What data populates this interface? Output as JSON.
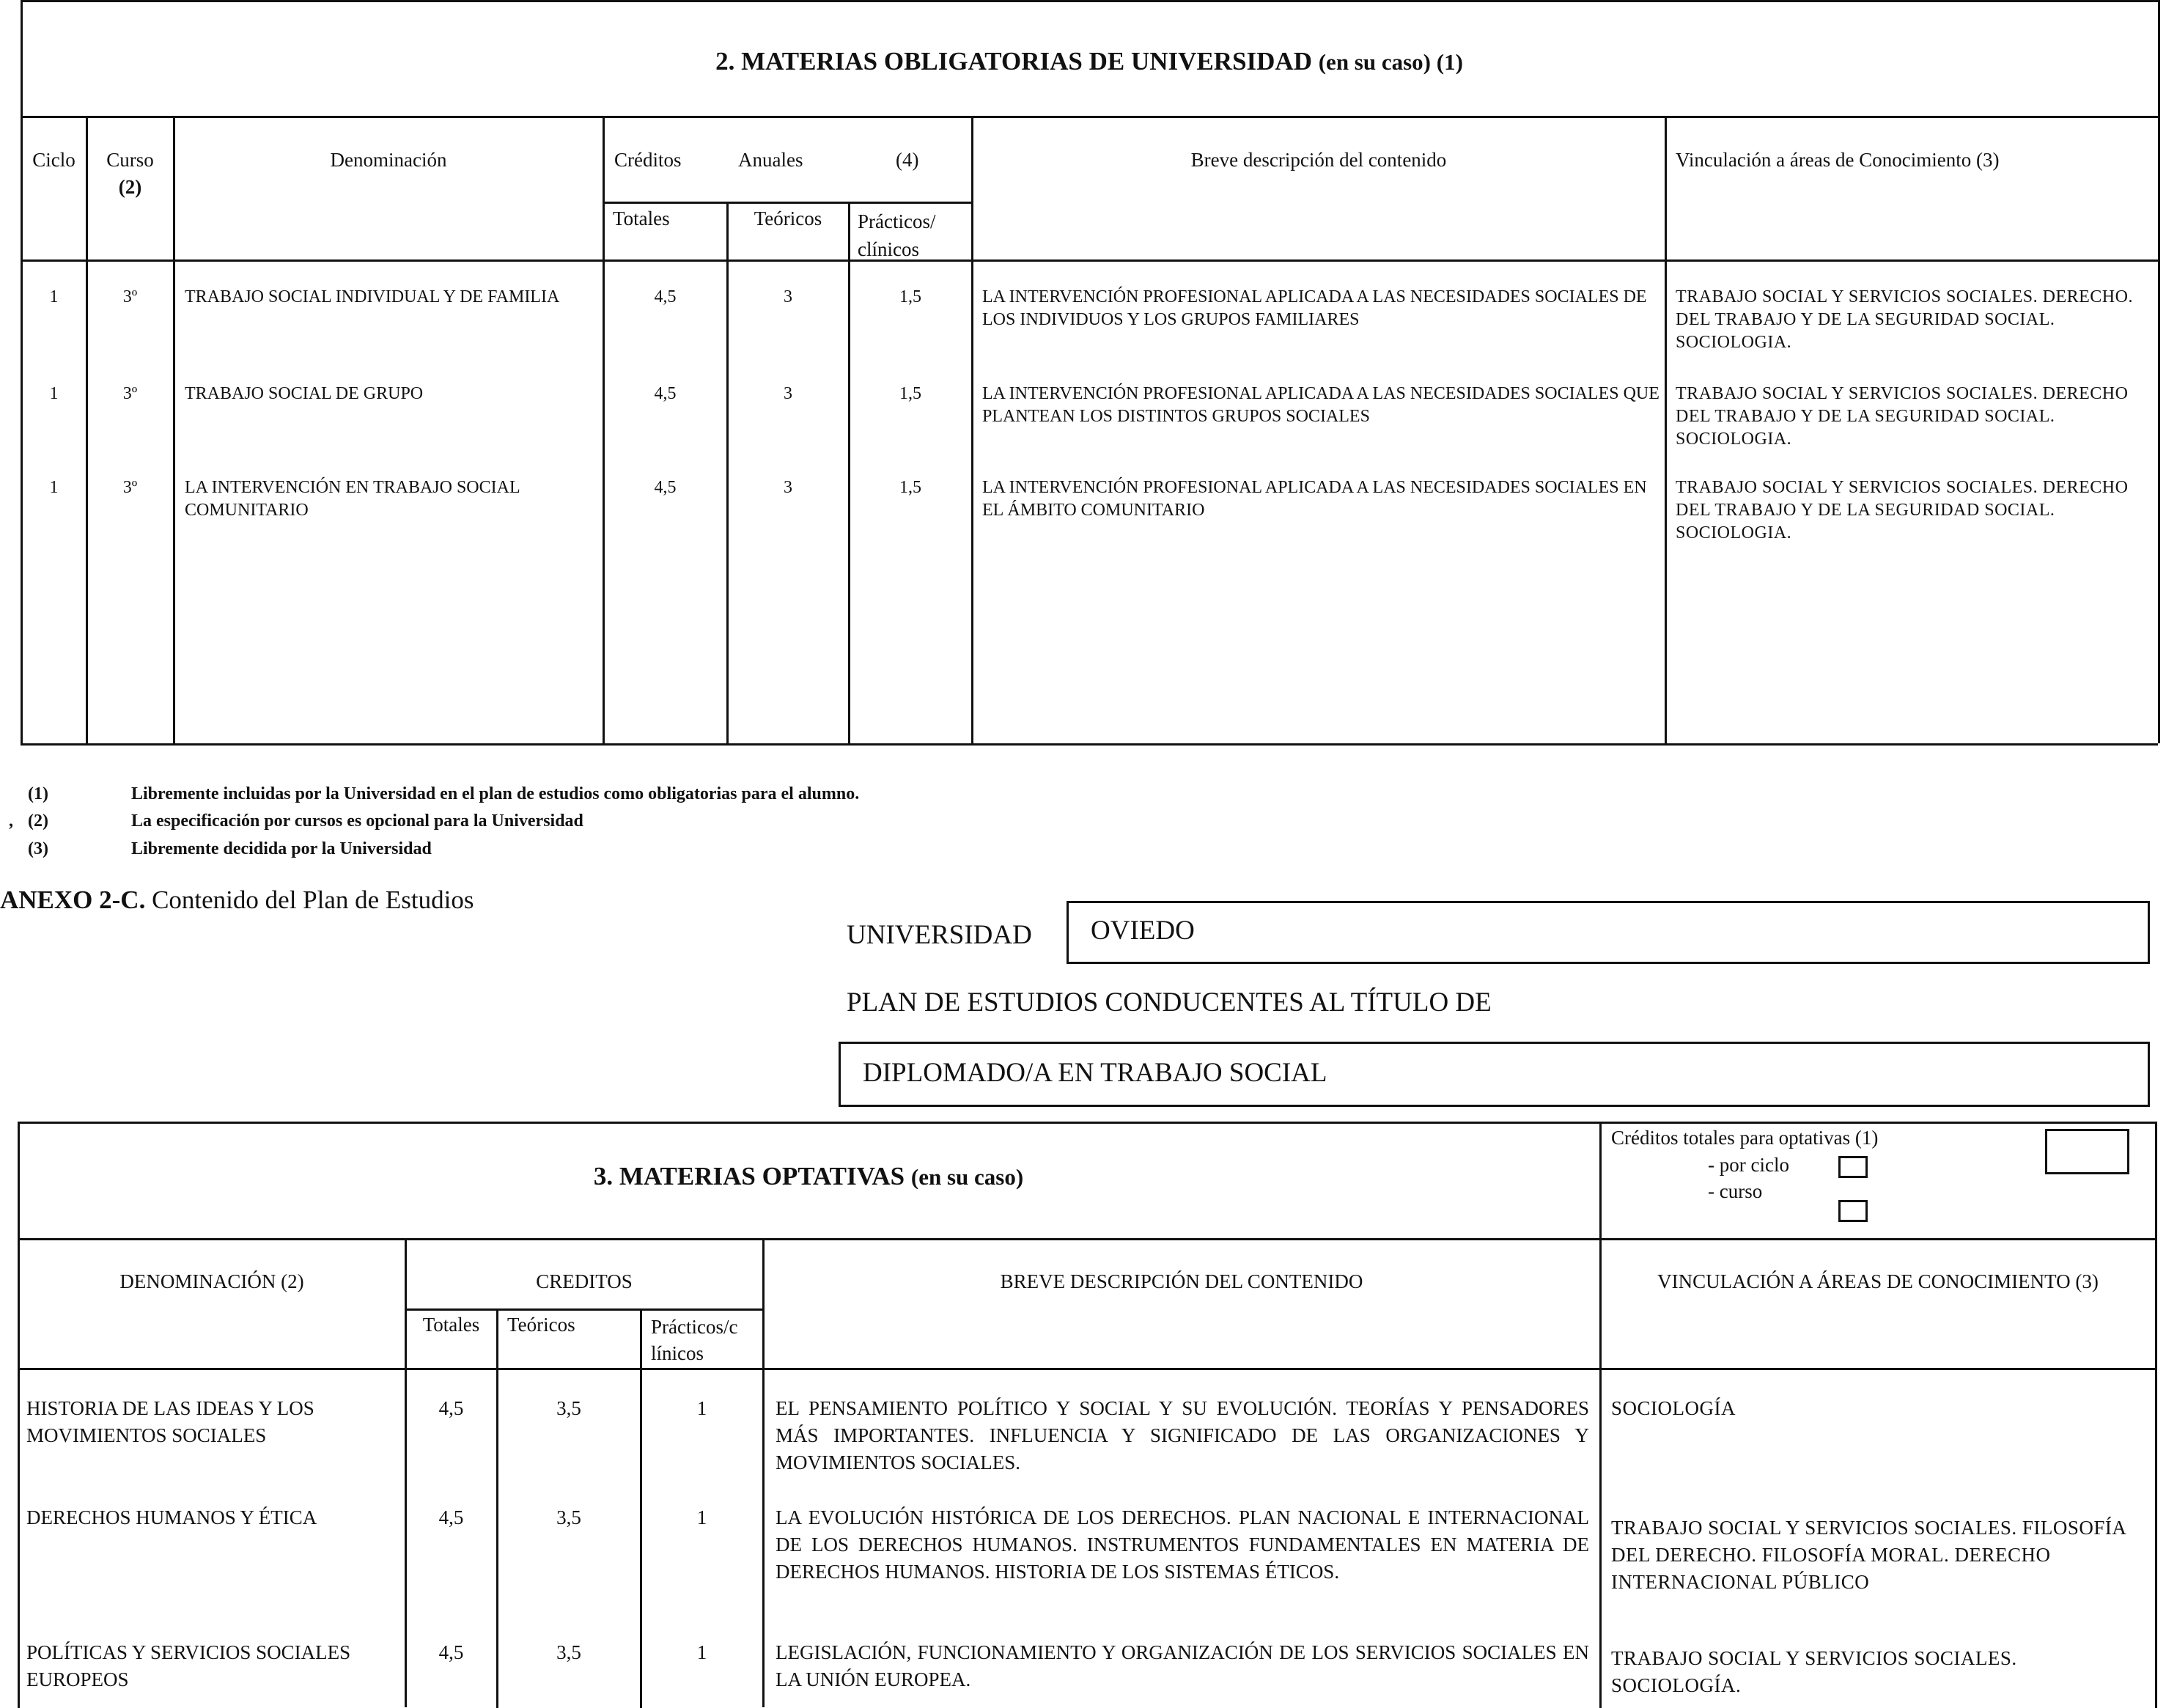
{
  "table1": {
    "title": "2. MATERIAS OBLIGATORIAS DE UNIVERSIDAD",
    "title_suffix": "(en su caso)  (1)",
    "headers": {
      "ciclo": "Ciclo",
      "curso": "Curso",
      "curso_note": "(2)",
      "denominacion": "Denominación",
      "creditos": "Créditos",
      "anuales": "Anuales",
      "anuales_note": "(4)",
      "totales": "Totales",
      "teoricos": "Teóricos",
      "practicos": "Prácticos/ clínicos",
      "descripcion": "Breve descripción del contenido",
      "vinculacion": "Vinculación a áreas de Conocimiento (3)"
    },
    "rows": [
      {
        "ciclo": "1",
        "curso": "3º",
        "denominacion": "TRABAJO SOCIAL INDIVIDUAL Y DE FAMILIA",
        "totales": "4,5",
        "teoricos": "3",
        "practicos": "1,5",
        "descripcion": "LA INTERVENCIÓN PROFESIONAL APLICADA A LAS NECESIDADES SOCIALES DE LOS INDIVIDUOS Y LOS GRUPOS FAMILIARES",
        "vinculacion": "TRABAJO SOCIAL Y SERVICIOS SOCIALES. DERECHO. DEL TRABAJO Y DE LA SEGURIDAD SOCIAL. SOCIOLOGIA."
      },
      {
        "ciclo": "1",
        "curso": "3º",
        "denominacion": "TRABAJO SOCIAL DE GRUPO",
        "totales": "4,5",
        "teoricos": "3",
        "practicos": "1,5",
        "descripcion": "LA INTERVENCIÓN PROFESIONAL APLICADA A LAS NECESIDADES SOCIALES QUE PLANTEAN LOS DISTINTOS GRUPOS SOCIALES",
        "vinculacion": "TRABAJO SOCIAL Y SERVICIOS SOCIALES. DERECHO  DEL TRABAJO Y DE LA SEGURIDAD SOCIAL. SOCIOLOGIA."
      },
      {
        "ciclo": "1",
        "curso": "3º",
        "denominacion": "LA INTERVENCIÓN EN TRABAJO SOCIAL COMUNITARIO",
        "totales": "4,5",
        "teoricos": "3",
        "practicos": "1,5",
        "descripcion": "LA INTERVENCIÓN PROFESIONAL APLICADA A LAS NECESIDADES SOCIALES EN EL ÁMBITO COMUNITARIO",
        "vinculacion": "TRABAJO SOCIAL Y SERVICIOS SOCIALES. DERECHO DEL TRABAJO Y DE LA SEGURIDAD SOCIAL. SOCIOLOGIA."
      }
    ]
  },
  "footnotes": [
    {
      "mark": "(1)",
      "text": "Libremente incluidas por la Universidad en el plan de estudios como obligatorias para el alumno."
    },
    {
      "mark": "(2)",
      "text": "La especificación por cursos es opcional para la Universidad"
    },
    {
      "mark": "(3)",
      "text": "Libremente decidida por la Universidad"
    }
  ],
  "annex": {
    "label": "ANEXO 2-C.",
    "text": "Contenido del Plan de Estudios"
  },
  "university": {
    "label": "UNIVERSIDAD",
    "value": "OVIEDO"
  },
  "plan": {
    "label": "PLAN DE ESTUDIOS CONDUCENTES AL TÍTULO DE",
    "value": "DIPLOMADO/A EN TRABAJO SOCIAL"
  },
  "table2": {
    "title": "3. MATERIAS OPTATIVAS",
    "title_suffix": "(en su caso)",
    "credits_box": {
      "label": "Créditos totales para optativas (1)",
      "por_ciclo": "- por ciclo",
      "curso": "- curso"
    },
    "headers": {
      "denominacion": "DENOMINACIÓN (2)",
      "creditos": "CREDITOS",
      "totales": "Totales",
      "teoricos": "Teóricos",
      "practicos": "Prácticos/c línicos",
      "descripcion": "BREVE DESCRIPCIÓN DEL CONTENIDO",
      "vinculacion": "VINCULACIÓN A ÁREAS DE CONOCIMIENTO (3)"
    },
    "rows": [
      {
        "denominacion": "HISTORIA DE LAS IDEAS  Y LOS MOVIMIENTOS SOCIALES",
        "totales": "4,5",
        "teoricos": "3,5",
        "practicos": "1",
        "descripcion": "EL PENSAMIENTO POLÍTICO Y SOCIAL Y SU EVOLUCIÓN. TEORÍAS Y PENSADORES MÁS IMPORTANTES. INFLUENCIA Y SIGNIFICADO DE LAS ORGANIZACIONES Y MOVIMIENTOS SOCIALES.",
        "vinculacion": "SOCIOLOGÍA"
      },
      {
        "denominacion": "DERECHOS HUMANOS Y ÉTICA",
        "totales": "4,5",
        "teoricos": "3,5",
        "practicos": "1",
        "descripcion": "LA EVOLUCIÓN HISTÓRICA DE LOS DERECHOS. PLAN NACIONAL E INTERNACIONAL DE LOS DERECHOS HUMANOS. INSTRUMENTOS FUNDAMENTALES EN MATERIA DE DERECHOS HUMANOS. HISTORIA DE LOS SISTEMAS ÉTICOS.",
        "vinculacion": "TRABAJO SOCIAL Y SERVICIOS SOCIALES. FILOSOFÍA DEL DERECHO. FILOSOFÍA MORAL. DERECHO INTERNACIONAL PÚBLICO"
      },
      {
        "denominacion": "POLÍTICAS Y SERVICIOS SOCIALES EUROPEOS",
        "totales": "4,5",
        "teoricos": "3,5",
        "practicos": "1",
        "descripcion": "LEGISLACIÓN, FUNCIONAMIENTO Y ORGANIZACIÓN DE LOS SERVICIOS SOCIALES EN LA UNIÓN EUROPEA.",
        "vinculacion": "TRABAJO SOCIAL Y SERVICIOS SOCIALES. SOCIOLOGÍA."
      }
    ]
  }
}
